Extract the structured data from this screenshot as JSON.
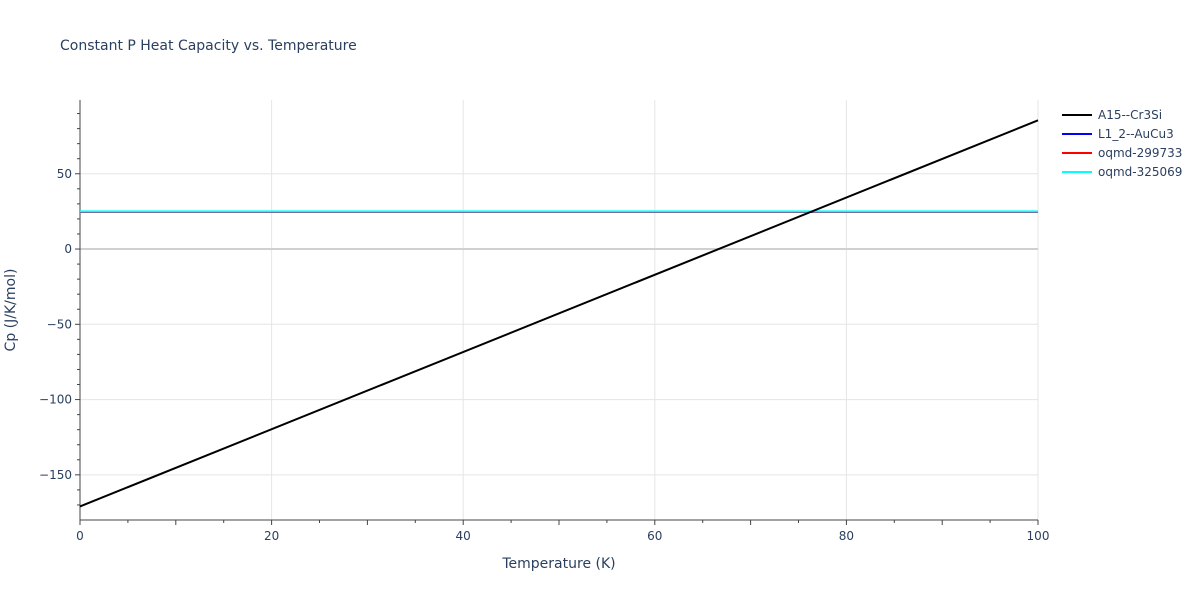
{
  "chart_data": {
    "type": "line",
    "title": "Constant P Heat Capacity vs. Temperature",
    "xlabel": "Temperature (K)",
    "ylabel": "Cp (J/K/mol)",
    "xlim": [
      0,
      100
    ],
    "ylim": [
      -180,
      99
    ],
    "x_ticks": [
      0,
      20,
      40,
      60,
      80,
      100
    ],
    "y_ticks": [
      -150,
      -100,
      -50,
      0,
      50
    ],
    "y_tick_labels": [
      "−150",
      "−100",
      "−50",
      "0",
      "50"
    ],
    "grid": true,
    "legend_position": "top-right",
    "series": [
      {
        "name": "A15--Cr3Si",
        "color": "#000000",
        "x": [
          0,
          100
        ],
        "y": [
          -171,
          85.5
        ]
      },
      {
        "name": "L1_2--AuCu3",
        "color": "#0000ff",
        "x": [
          0,
          100
        ],
        "y": [
          24.7,
          24.7
        ]
      },
      {
        "name": "oqmd-299733",
        "color": "#ff0000",
        "x": [
          0,
          100
        ],
        "y": [
          24.8,
          24.8
        ]
      },
      {
        "name": "oqmd-325069",
        "color": "#00ffff",
        "x": [
          0,
          100
        ],
        "y": [
          25.0,
          25.0
        ]
      }
    ]
  }
}
